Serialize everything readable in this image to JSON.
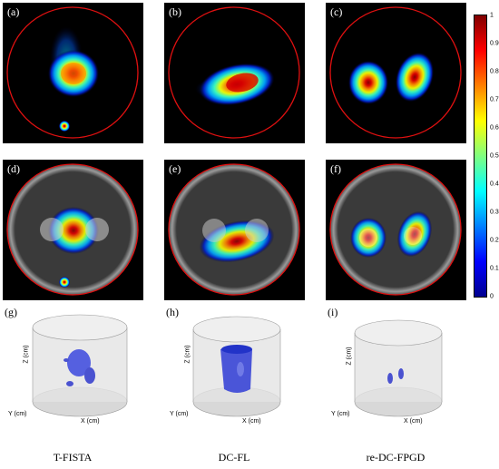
{
  "panels": {
    "a": "(a)",
    "b": "(b)",
    "c": "(c)",
    "d": "(d)",
    "e": "(e)",
    "f": "(f)",
    "g": "(g)",
    "h": "(h)",
    "i": "(i)"
  },
  "captions": [
    "T-FISTA",
    "DC-FL",
    "re-DC-FPGD"
  ],
  "colorbar": {
    "colormap": "jet",
    "ticks": [
      "1",
      "0.9",
      "0.8",
      "0.7",
      "0.6",
      "0.5",
      "0.4",
      "0.3",
      "0.2",
      "0.1",
      "0"
    ]
  },
  "axes3d": {
    "z_label": "Z (cm)",
    "y_label": "Y (cm)",
    "x_label": "X (cm)",
    "z_ticks": [
      "2.5",
      "2",
      "1.5",
      "1",
      "0.5",
      "0"
    ],
    "x_ticks": [
      "1.5",
      "1",
      "0.5",
      "0",
      "-0.5",
      "-1",
      "-1.5"
    ],
    "y_ticks": [
      "1.5",
      "1",
      "0.5",
      "0",
      "-0.5",
      "-1",
      "-1.5"
    ]
  }
}
